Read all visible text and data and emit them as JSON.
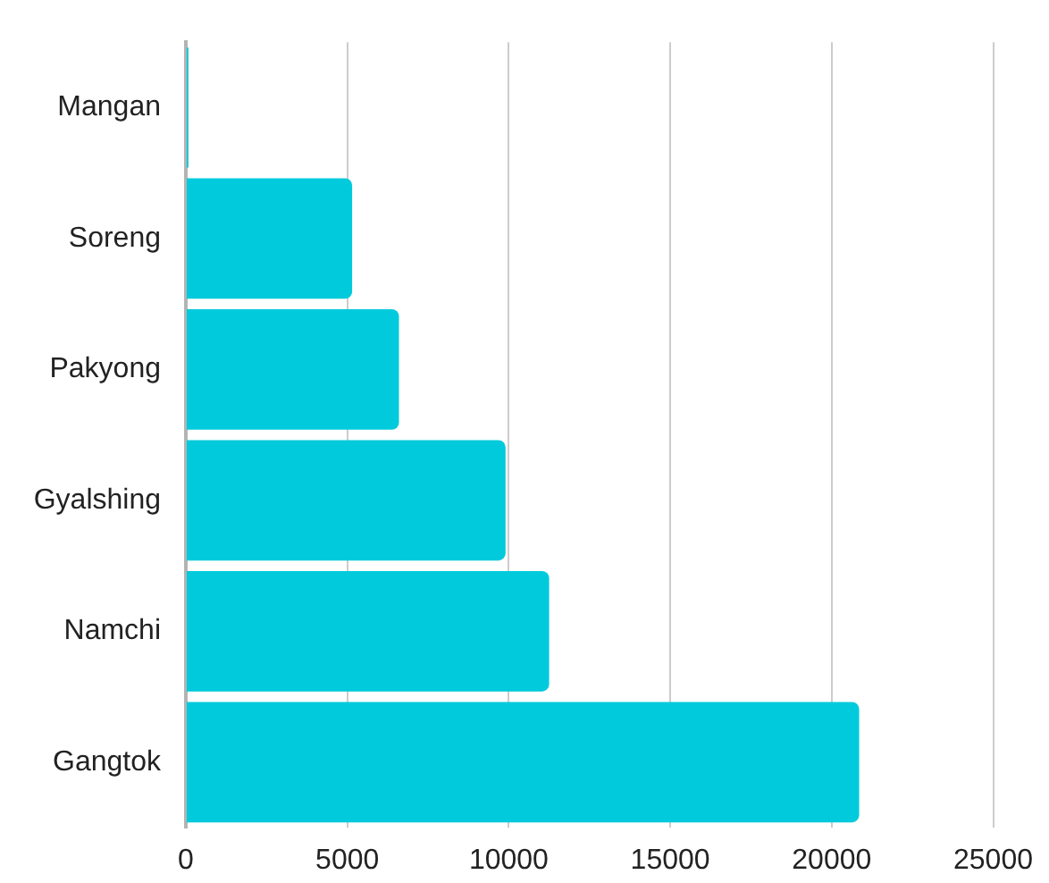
{
  "chart_data": {
    "type": "bar",
    "orientation": "horizontal",
    "categories": [
      "Mangan",
      "Soreng",
      "Pakyong",
      "Gyalshing",
      "Namchi",
      "Gangtok"
    ],
    "values": [
      80,
      5150,
      6600,
      9900,
      11250,
      20850
    ],
    "color": "#00cadb",
    "xlim": [
      0,
      25000
    ],
    "xticks": [
      0,
      5000,
      10000,
      15000,
      20000,
      25000
    ],
    "grid": "x"
  }
}
